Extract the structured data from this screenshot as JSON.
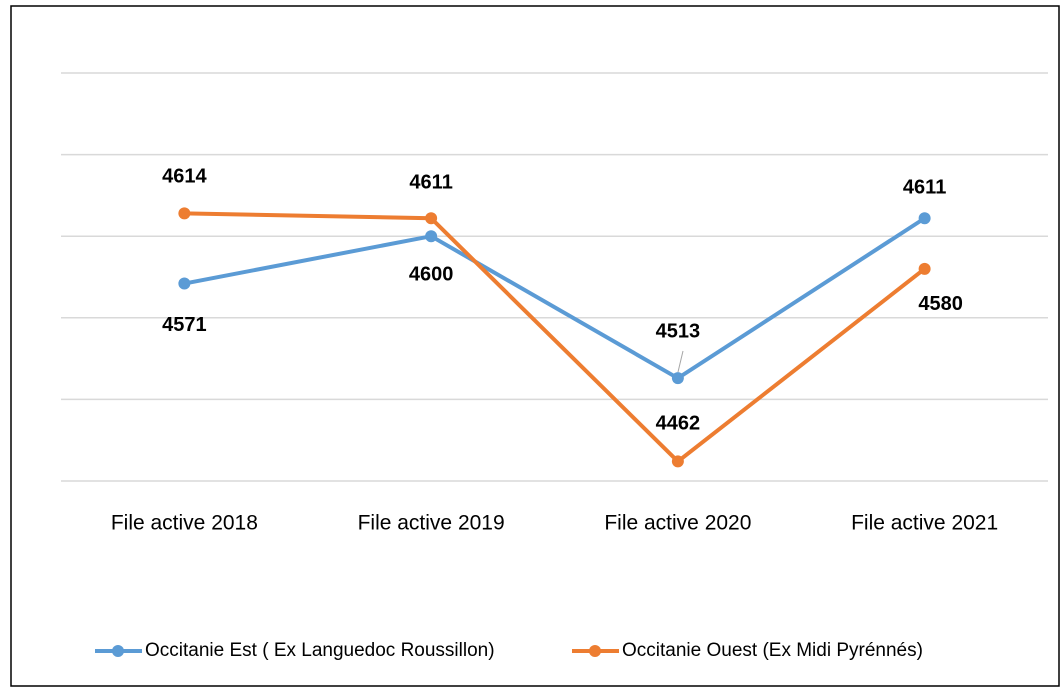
{
  "chart_data": {
    "type": "line",
    "categories": [
      "File active  2018",
      "File active 2019",
      "File active 2020",
      "File active 2021"
    ],
    "series": [
      {
        "name": "Occitanie Est ( Ex Languedoc Roussillon)",
        "color": "#5b9bd5",
        "values": [
          4571,
          4600,
          4513,
          4611
        ]
      },
      {
        "name": "Occitanie Ouest (Ex Midi Pyrénnés)",
        "color": "#ed7d31",
        "values": [
          4614,
          4611,
          4462,
          4580
        ]
      }
    ],
    "ylim": [
      4450,
      4700
    ],
    "yticks": [
      4450,
      4500,
      4550,
      4600,
      4650,
      4700
    ],
    "grid": true,
    "legend": "bottom"
  }
}
